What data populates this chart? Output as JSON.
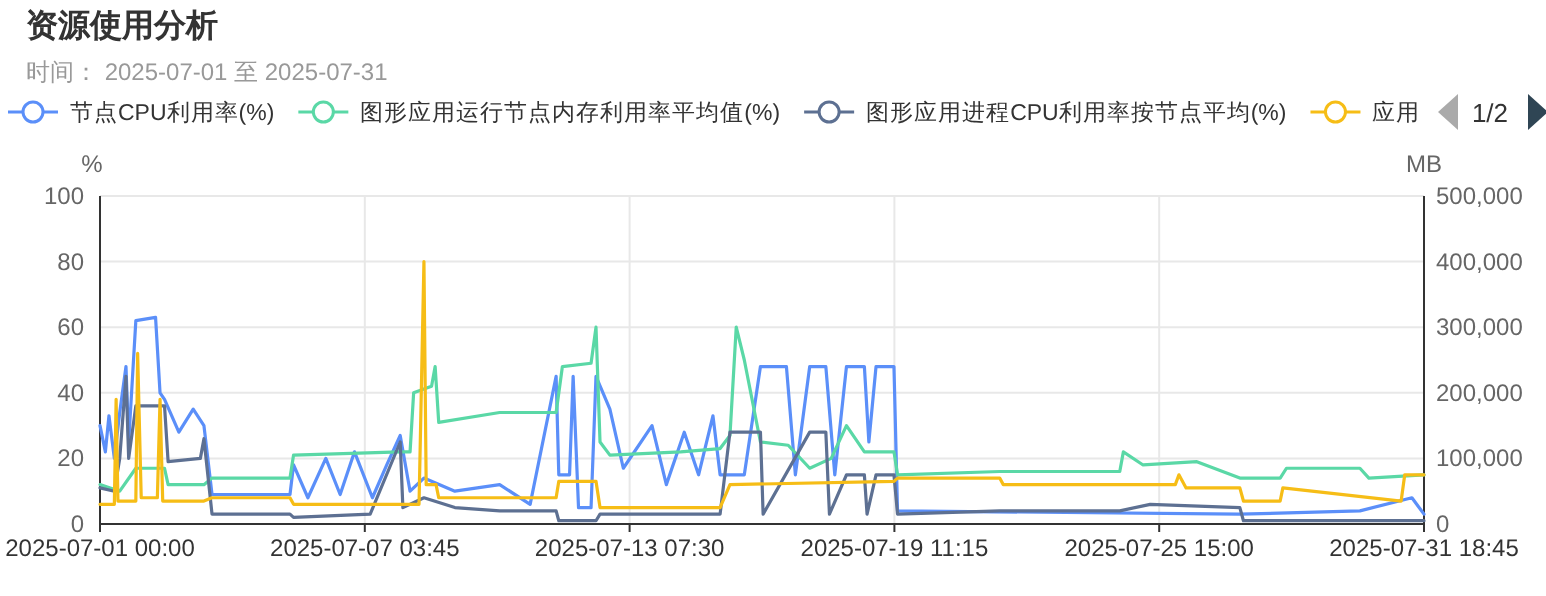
{
  "chart_data": {
    "type": "line",
    "title": "资源使用分析",
    "subtitle": "时间： 2025-07-01 至 2025-07-31",
    "ylabel": "%",
    "y2label": "MB",
    "grid": true,
    "legend": "top left",
    "annotations": [
      "1/2"
    ],
    "xlim": [
      "2025-07-01T00:00",
      "2025-07-31T18:45"
    ],
    "xticks": [
      {
        "value": "2025-07-01T00:00",
        "label": "2025-07-01 00:00"
      },
      {
        "value": "2025-07-07T03:45",
        "label": "2025-07-07 03:45"
      },
      {
        "value": "2025-07-13T07:30",
        "label": "2025-07-13 07:30"
      },
      {
        "value": "2025-07-19T11:15",
        "label": "2025-07-19 11:15"
      },
      {
        "value": "2025-07-25T15:00",
        "label": "2025-07-25 15:00"
      },
      {
        "value": "2025-07-31T18:45",
        "label": "2025-07-31 18:45"
      }
    ],
    "ylim": [
      0,
      100
    ],
    "yticks": [
      0,
      20,
      40,
      60,
      80,
      100
    ],
    "y2lim": [
      0,
      500000
    ],
    "y2ticks": [
      0,
      {
        "value": 100000,
        "label": "100,000"
      },
      {
        "value": 200000,
        "label": "200,000"
      },
      {
        "value": 300000,
        "label": "300,000"
      },
      {
        "value": 400000,
        "label": "400,000"
      },
      {
        "value": 500000,
        "label": "500,000"
      }
    ],
    "series": [
      {
        "name": "节点CPU利用率(%)",
        "color": "#5b8ff9",
        "x": [
          "2025-07-01T00:00",
          "2025-07-01T03:00",
          "2025-07-01T05:00",
          "2025-07-01T08:00",
          "2025-07-01T11:00",
          "2025-07-01T14:30",
          "2025-07-01T16:00",
          "2025-07-01T20:00",
          "2025-07-02T07:00",
          "2025-07-02T09:30",
          "2025-07-02T12:00",
          "2025-07-02T20:00",
          "2025-07-03T04:00",
          "2025-07-03T10:00",
          "2025-07-03T14:30",
          "2025-07-05T10:00",
          "2025-07-05T12:00",
          "2025-07-05T20:00",
          "2025-07-06T06:00",
          "2025-07-06T14:00",
          "2025-07-06T22:00",
          "2025-07-07T08:00",
          "2025-07-07T16:00",
          "2025-07-07T23:30",
          "2025-07-08T05:00",
          "2025-07-08T12:45",
          "2025-07-09T06:00",
          "2025-07-10T07:00",
          "2025-07-11T00:00",
          "2025-07-11T14:30",
          "2025-07-11T16:00",
          "2025-07-11T22:00",
          "2025-07-12T00:00",
          "2025-07-12T03:00",
          "2025-07-12T10:00",
          "2025-07-12T12:45",
          "2025-07-12T20:30",
          "2025-07-13T04:00",
          "2025-07-13T20:00",
          "2025-07-14T04:00",
          "2025-07-14T14:00",
          "2025-07-14T22:00",
          "2025-07-15T06:00",
          "2025-07-15T10:00",
          "2025-07-15T23:30",
          "2025-07-16T08:30",
          "2025-07-16T23:00",
          "2025-07-17T04:00",
          "2025-07-17T12:00",
          "2025-07-17T21:00",
          "2025-07-18T02:00",
          "2025-07-18T08:30",
          "2025-07-18T18:30",
          "2025-07-18T21:00",
          "2025-07-19T01:00",
          "2025-07-19T11:00",
          "2025-07-19T13:00",
          "2025-07-27T12:00",
          "2025-07-30T07:00",
          "2025-07-31T12:00",
          "2025-07-31T18:45"
        ],
        "values": [
          30,
          22,
          33,
          20,
          34,
          48,
          25,
          62,
          63,
          40,
          38,
          28,
          35,
          30,
          9,
          9,
          18,
          8,
          20,
          9,
          22,
          8,
          18,
          27,
          10,
          14,
          10,
          12,
          6,
          45,
          15,
          15,
          45,
          5,
          5,
          45,
          35,
          17,
          30,
          12,
          28,
          15,
          33,
          15,
          15,
          48,
          48,
          15,
          48,
          48,
          15,
          48,
          48,
          25,
          48,
          48,
          4,
          3,
          4,
          8,
          3
        ]
      },
      {
        "name": "图形应用运行节点内存利用率平均值(%)",
        "color": "#5ad8a6",
        "x": [
          "2025-07-01T00:00",
          "2025-07-01T11:00",
          "2025-07-01T20:00",
          "2025-07-02T12:00",
          "2025-07-02T14:00",
          "2025-07-03T10:00",
          "2025-07-03T14:30",
          "2025-07-05T10:00",
          "2025-07-05T12:00",
          "2025-07-07T23:30",
          "2025-07-08T05:00",
          "2025-07-08T07:00",
          "2025-07-08T17:00",
          "2025-07-08T19:00",
          "2025-07-08T21:00",
          "2025-07-10T07:00",
          "2025-07-11T14:30",
          "2025-07-11T18:00",
          "2025-07-12T10:00",
          "2025-07-12T12:45",
          "2025-07-12T15:00",
          "2025-07-12T20:30",
          "2025-07-14T12:00",
          "2025-07-15T10:00",
          "2025-07-15T15:30",
          "2025-07-15T19:00",
          "2025-07-15T23:30",
          "2025-07-16T08:30",
          "2025-07-17T00:00",
          "2025-07-17T12:00",
          "2025-07-18T00:00",
          "2025-07-18T08:30",
          "2025-07-18T18:30",
          "2025-07-19T11:00",
          "2025-07-19T13:00",
          "2025-07-21T22:00",
          "2025-07-24T17:00",
          "2025-07-24T19:00",
          "2025-07-25T06:00",
          "2025-07-26T12:00",
          "2025-07-27T12:00",
          "2025-07-28T10:30",
          "2025-07-28T14:00",
          "2025-07-30T07:00",
          "2025-07-30T12:00",
          "2025-07-31T18:45"
        ],
        "values": [
          12,
          10,
          17,
          17,
          12,
          12,
          14,
          14,
          21,
          22,
          22,
          40,
          42,
          48,
          31,
          34,
          34,
          48,
          49,
          60,
          25,
          21,
          22,
          23,
          27,
          60,
          50,
          25,
          24,
          17,
          20,
          30,
          22,
          22,
          15,
          16,
          16,
          22,
          18,
          19,
          14,
          14,
          17,
          17,
          14,
          15
        ]
      },
      {
        "name": "图形应用进程CPU利用率按节点平均(%)",
        "color": "#5d7092",
        "x": [
          "2025-07-01T00:00",
          "2025-07-01T08:00",
          "2025-07-01T11:00",
          "2025-07-01T14:30",
          "2025-07-01T16:00",
          "2025-07-01T20:00",
          "2025-07-02T12:00",
          "2025-07-02T14:00",
          "2025-07-03T08:00",
          "2025-07-03T10:00",
          "2025-07-03T14:30",
          "2025-07-05T10:00",
          "2025-07-05T12:00",
          "2025-07-07T06:45",
          "2025-07-07T23:30",
          "2025-07-08T01:00",
          "2025-07-08T12:45",
          "2025-07-09T06:00",
          "2025-07-10T07:00",
          "2025-07-11T14:30",
          "2025-07-11T16:00",
          "2025-07-12T12:45",
          "2025-07-12T15:00",
          "2025-07-15T10:00",
          "2025-07-15T15:30",
          "2025-07-16T08:30",
          "2025-07-16T10:00",
          "2025-07-17T12:00",
          "2025-07-17T21:00",
          "2025-07-17T23:00",
          "2025-07-18T08:30",
          "2025-07-18T18:30",
          "2025-07-18T20:00",
          "2025-07-19T01:00",
          "2025-07-19T11:00",
          "2025-07-19T13:00",
          "2025-07-21T22:00",
          "2025-07-24T17:00",
          "2025-07-25T10:00",
          "2025-07-27T12:00",
          "2025-07-27T14:00",
          "2025-07-31T18:45"
        ],
        "values": [
          11,
          10,
          20,
          45,
          20,
          36,
          36,
          19,
          20,
          26,
          3,
          3,
          2,
          3,
          25,
          5,
          8,
          5,
          4,
          4,
          1,
          1,
          3,
          3,
          28,
          28,
          3,
          28,
          28,
          3,
          15,
          15,
          3,
          15,
          15,
          3,
          4,
          4,
          6,
          5,
          1,
          1
        ]
      },
      {
        "name": "应用",
        "color": "#f6bd16",
        "x": [
          "2025-07-01T00:00",
          "2025-07-01T08:00",
          "2025-07-01T09:00",
          "2025-07-01T10:00",
          "2025-07-01T20:00",
          "2025-07-01T21:00",
          "2025-07-01T23:00",
          "2025-07-02T08:00",
          "2025-07-02T09:30",
          "2025-07-02T11:00",
          "2025-07-03T10:00",
          "2025-07-03T14:30",
          "2025-07-05T10:00",
          "2025-07-05T12:00",
          "2025-07-08T10:00",
          "2025-07-08T12:45",
          "2025-07-08T14:00",
          "2025-07-08T19:30",
          "2025-07-08T21:00",
          "2025-07-11T14:30",
          "2025-07-11T16:00",
          "2025-07-12T12:45",
          "2025-07-12T15:00",
          "2025-07-15T10:00",
          "2025-07-15T15:30",
          "2025-07-19T11:00",
          "2025-07-19T13:00",
          "2025-07-21T22:00",
          "2025-07-22T00:00",
          "2025-07-26T00:00",
          "2025-07-26T02:00",
          "2025-07-26T06:00",
          "2025-07-27T12:00",
          "2025-07-27T14:00",
          "2025-07-28T10:30",
          "2025-07-28T12:00",
          "2025-07-31T06:00",
          "2025-07-31T08:00",
          "2025-07-31T18:45"
        ],
        "values": [
          6,
          6,
          38,
          7,
          7,
          52,
          8,
          8,
          38,
          7,
          7,
          8,
          8,
          6,
          6,
          80,
          12,
          12,
          8,
          8,
          13,
          13,
          5,
          5,
          12,
          13,
          14,
          14,
          12,
          12,
          15,
          11,
          11,
          7,
          7,
          11,
          7,
          15,
          15
        ]
      }
    ]
  }
}
